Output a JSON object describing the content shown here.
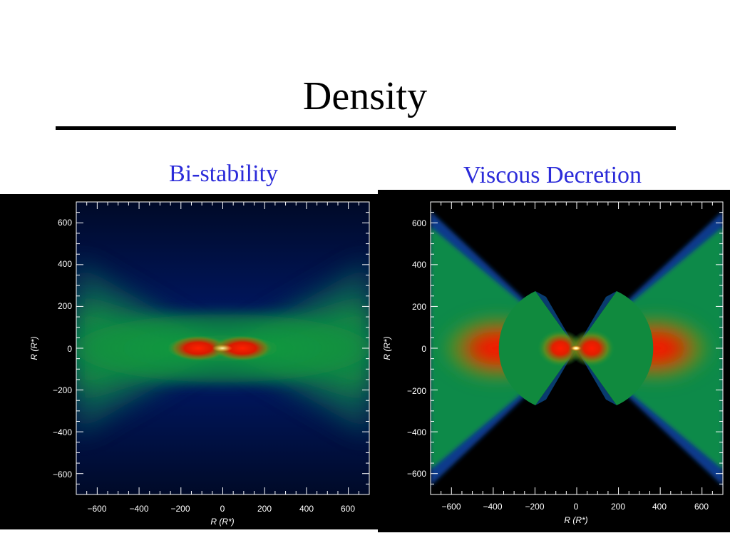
{
  "slide": {
    "title": "Density",
    "left_label": "Bi-stability",
    "right_label": "Viscous Decretion"
  },
  "chart_data": [
    {
      "type": "heatmap",
      "title": "Bi-stability",
      "xlabel": "R (R*)",
      "ylabel": "R (R*)",
      "xlim": [
        -700,
        700
      ],
      "ylim": [
        -700,
        700
      ],
      "x_ticks": [
        -600,
        -400,
        -200,
        0,
        200,
        400,
        600
      ],
      "y_ticks": [
        600,
        400,
        200,
        0,
        -200,
        -400,
        -600
      ],
      "x_tick_labels": [
        "−600",
        "−400",
        "−200",
        "0",
        "200",
        "400",
        "600"
      ],
      "y_tick_labels": [
        "600",
        "400",
        "200",
        "0",
        "−200",
        "−400",
        "−600"
      ],
      "colormap": [
        "#000000",
        "#001066",
        "#00aa33",
        "#dd1100",
        "#ffee88"
      ]
    },
    {
      "type": "heatmap",
      "title": "Viscous Decretion",
      "xlabel": "R (R*)",
      "ylabel": "R (R*)",
      "xlim": [
        -700,
        700
      ],
      "ylim": [
        -700,
        700
      ],
      "x_ticks": [
        -600,
        -400,
        -200,
        0,
        200,
        400,
        600
      ],
      "y_ticks": [
        600,
        400,
        200,
        0,
        -200,
        -400,
        -600
      ],
      "x_tick_labels": [
        "−600",
        "−400",
        "−200",
        "0",
        "200",
        "400",
        "600"
      ],
      "y_tick_labels": [
        "600",
        "400",
        "200",
        "0",
        "−200",
        "−400",
        "−600"
      ],
      "colormap": [
        "#000000",
        "#001066",
        "#00aa33",
        "#dd1100",
        "#ffee88"
      ]
    }
  ]
}
